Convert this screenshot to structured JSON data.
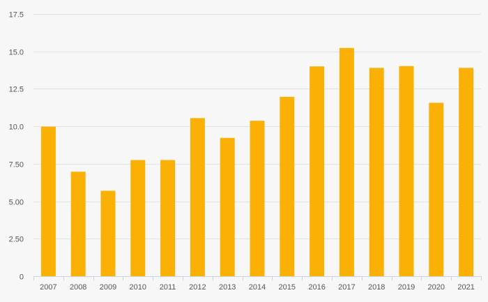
{
  "chart_data": {
    "type": "bar",
    "categories": [
      "2007",
      "2008",
      "2009",
      "2010",
      "2011",
      "2012",
      "2013",
      "2014",
      "2015",
      "2016",
      "2017",
      "2018",
      "2019",
      "2020",
      "2021"
    ],
    "values": [
      9.98,
      6.97,
      5.7,
      7.75,
      7.75,
      10.55,
      9.23,
      10.37,
      11.97,
      14.0,
      15.23,
      13.9,
      14.02,
      11.57,
      13.9
    ],
    "ylim": [
      0,
      17.5
    ],
    "yticks": [
      0,
      2.5,
      5,
      7.5,
      10,
      12.5,
      15,
      17.5
    ],
    "ytick_labels": [
      "0",
      "2.50",
      "5.00",
      "7.50",
      "10.0",
      "12.5",
      "15.0",
      "17.5"
    ],
    "bar_color": "#fab005",
    "grid": true,
    "title": "",
    "xlabel": "",
    "ylabel": ""
  }
}
